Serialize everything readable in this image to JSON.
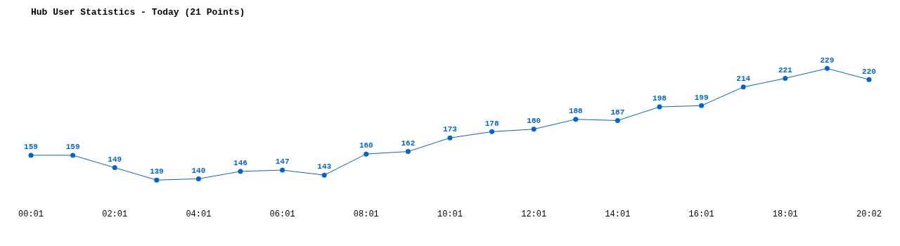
{
  "chart_data": {
    "type": "line",
    "title": "Hub User Statistics - Today (21 Points)",
    "categories": [
      "00:01",
      null,
      "02:01",
      null,
      "04:01",
      null,
      "06:01",
      null,
      "08:01",
      null,
      "10:01",
      null,
      "12:01",
      null,
      "14:01",
      null,
      "16:01",
      null,
      "18:01",
      null,
      "20:02"
    ],
    "series": [
      {
        "color": "#0066cc",
        "values": [
          159,
          159,
          149,
          139,
          140,
          146,
          147,
          143,
          160,
          162,
          173,
          178,
          180,
          188,
          187,
          198,
          199,
          214,
          221,
          229,
          220
        ]
      }
    ],
    "data_labels": true,
    "marker": "circle",
    "grid": false,
    "legend": false,
    "tick_labels": "x"
  }
}
